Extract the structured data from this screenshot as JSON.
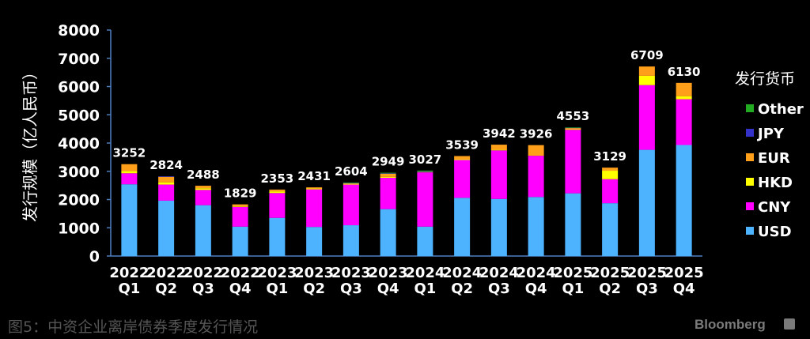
{
  "chart_data": {
    "type": "bar",
    "stacked": true,
    "ylabel": "发行规模（亿人民币）",
    "ylim": [
      0,
      8000
    ],
    "yticks": [
      0,
      1000,
      2000,
      3000,
      4000,
      5000,
      6000,
      7000,
      8000
    ],
    "categories": [
      {
        "year": "2022",
        "q": "Q1"
      },
      {
        "year": "2022",
        "q": "Q2"
      },
      {
        "year": "2022",
        "q": "Q3"
      },
      {
        "year": "2022",
        "q": "Q4"
      },
      {
        "year": "2023",
        "q": "Q1"
      },
      {
        "year": "2023",
        "q": "Q2"
      },
      {
        "year": "2023",
        "q": "Q3"
      },
      {
        "year": "2023",
        "q": "Q4"
      },
      {
        "year": "2024",
        "q": "Q1"
      },
      {
        "year": "2024",
        "q": "Q2"
      },
      {
        "year": "2024",
        "q": "Q3"
      },
      {
        "year": "2024",
        "q": "Q4"
      },
      {
        "year": "2025",
        "q": "Q1"
      },
      {
        "year": "2025",
        "q": "Q2"
      },
      {
        "year": "2025",
        "q": "Q3"
      },
      {
        "year": "2025",
        "q": "Q4"
      }
    ],
    "totals": [
      3252,
      2824,
      2488,
      1829,
      2353,
      2431,
      2604,
      2949,
      3027,
      3539,
      3942,
      3926,
      4553,
      3129,
      6709,
      6130
    ],
    "legend_title": "发行货币",
    "legend_position": "right",
    "series": [
      {
        "name": "USD",
        "color": "#4db3ff",
        "values": [
          2540,
          1960,
          1800,
          1040,
          1350,
          1030,
          1090,
          1660,
          1040,
          2060,
          2020,
          2090,
          2220,
          1870,
          3760,
          3930
        ]
      },
      {
        "name": "CNY",
        "color": "#ff00ff",
        "values": [
          390,
          570,
          540,
          700,
          880,
          1330,
          1440,
          1110,
          1920,
          1340,
          1720,
          1460,
          2250,
          850,
          2290,
          1620
        ]
      },
      {
        "name": "HKD",
        "color": "#ffff00",
        "values": [
          80,
          80,
          60,
          20,
          60,
          30,
          30,
          30,
          0,
          30,
          20,
          0,
          20,
          300,
          330,
          110
        ]
      },
      {
        "name": "EUR",
        "color": "#ff9f1a",
        "values": [
          242,
          194,
          88,
          69,
          63,
          41,
          14,
          119,
          17,
          109,
          182,
          376,
          43,
          109,
          329,
          470
        ]
      },
      {
        "name": "JPY",
        "color": "#3333cc",
        "values": [
          0,
          20,
          0,
          0,
          0,
          0,
          10,
          10,
          20,
          0,
          0,
          0,
          10,
          0,
          0,
          0
        ]
      },
      {
        "name": "Other",
        "color": "#22aa22",
        "values": [
          0,
          0,
          0,
          0,
          0,
          0,
          20,
          20,
          30,
          0,
          0,
          0,
          10,
          0,
          0,
          0
        ]
      }
    ]
  },
  "caption": "图5：中资企业离岸债券季度发行情况",
  "brand": "Bloomberg"
}
